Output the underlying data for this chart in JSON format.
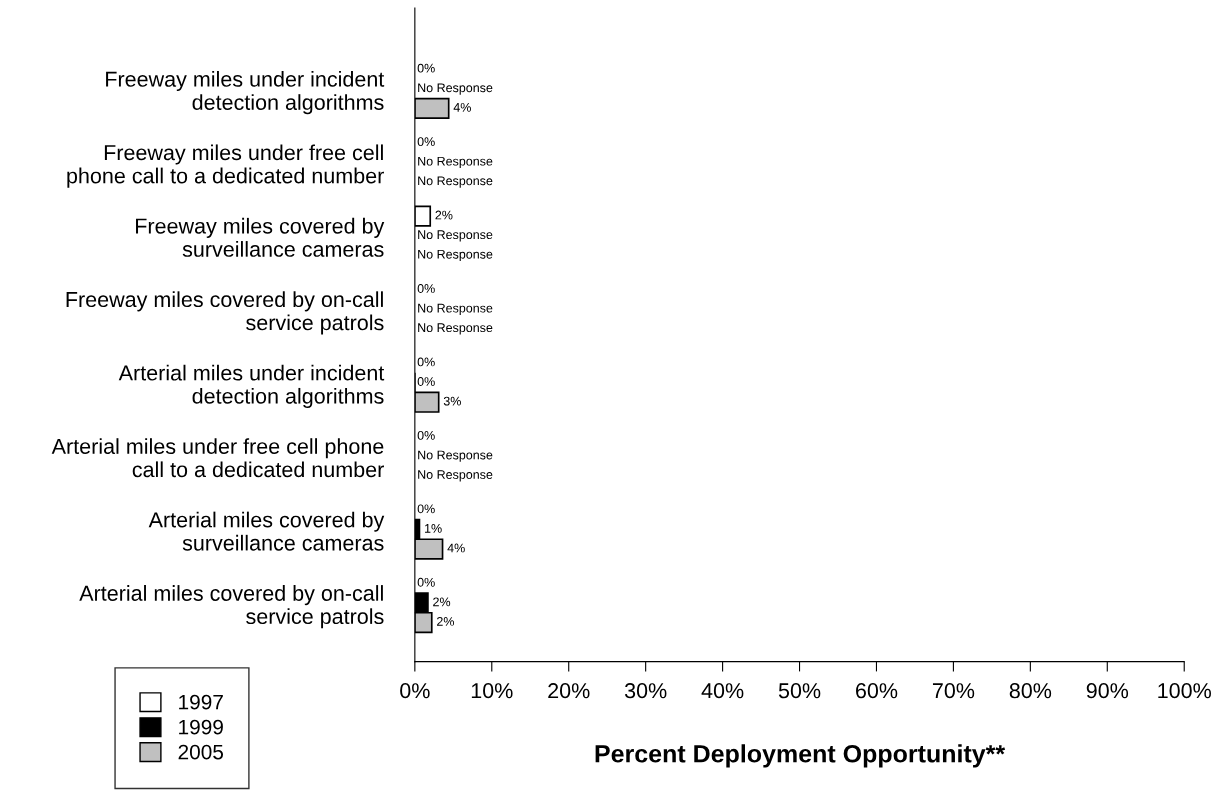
{
  "chart_data": {
    "type": "bar",
    "orientation": "horizontal",
    "xlabel": "Percent Deployment Opportunity**",
    "categories": [
      "Freeway miles under incident\ndetection algorithms",
      "Freeway miles under free cell\nphone call to a dedicated number",
      "Freeway miles covered by\nsurveillance cameras",
      "Freeway miles covered by on-call\nservice patrols",
      "Arterial miles under incident\ndetection algorithms",
      "Arterial miles under free cell phone\ncall to a dedicated number",
      "Arterial miles covered by\nsurveillance cameras",
      "Arterial miles covered by on-call\nservice patrols"
    ],
    "series": [
      {
        "name": "1997",
        "color": "#ffffff",
        "values": [
          0,
          0,
          2.0,
          0,
          0,
          0,
          0,
          0
        ],
        "value_labels": [
          "0%",
          "0%",
          "2%",
          "0%",
          "0%",
          "0%",
          "0%",
          "0%"
        ]
      },
      {
        "name": "1999",
        "color": "#000000",
        "values": [
          null,
          null,
          null,
          null,
          0,
          null,
          0.6,
          1.7
        ],
        "value_labels": [
          "No Response",
          "No Response",
          "No Response",
          "No Response",
          "0%",
          "No Response",
          "1%",
          "2%"
        ]
      },
      {
        "name": "2005",
        "color": "#c0c0c0",
        "values": [
          4.4,
          null,
          null,
          null,
          3.1,
          null,
          3.6,
          2.2
        ],
        "value_labels": [
          "4%",
          "No Response",
          "No Response",
          "No Response",
          "3%",
          "No Response",
          "4%",
          "2%"
        ]
      }
    ],
    "xlim": [
      0,
      100
    ],
    "xticks": [
      {
        "value": 0,
        "label": "0%"
      },
      {
        "value": 10,
        "label": "10%"
      },
      {
        "value": 20,
        "label": "20%"
      },
      {
        "value": 30,
        "label": "30%"
      },
      {
        "value": 40,
        "label": "40%"
      },
      {
        "value": 50,
        "label": "50%"
      },
      {
        "value": 60,
        "label": "60%"
      },
      {
        "value": 70,
        "label": "70%"
      },
      {
        "value": 80,
        "label": "80%"
      },
      {
        "value": 90,
        "label": "90%"
      },
      {
        "value": 100,
        "label": "100%"
      }
    ],
    "legend": "bottom left",
    "grid": false
  }
}
